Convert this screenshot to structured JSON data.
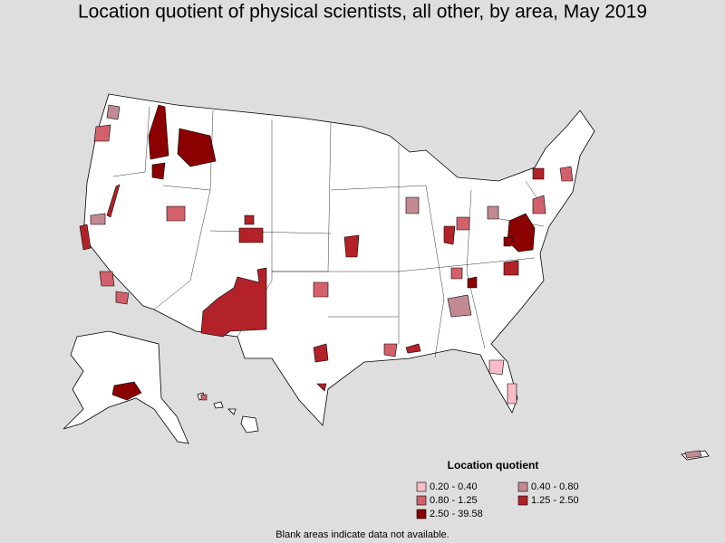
{
  "title": "Location quotient of physical scientists, all other, by area, May 2019",
  "legend": {
    "title": "Location quotient",
    "items": [
      {
        "label": "0.20 - 0.40",
        "color": "#f9bcc7"
      },
      {
        "label": "0.40 - 0.80",
        "color": "#c28a93"
      },
      {
        "label": "0.80 - 1.25",
        "color": "#d2616b"
      },
      {
        "label": "1.25 - 2.50",
        "color": "#b22228"
      },
      {
        "label": "2.50 - 39.58",
        "color": "#8b0000"
      }
    ]
  },
  "note": "Blank areas indicate data not available."
}
